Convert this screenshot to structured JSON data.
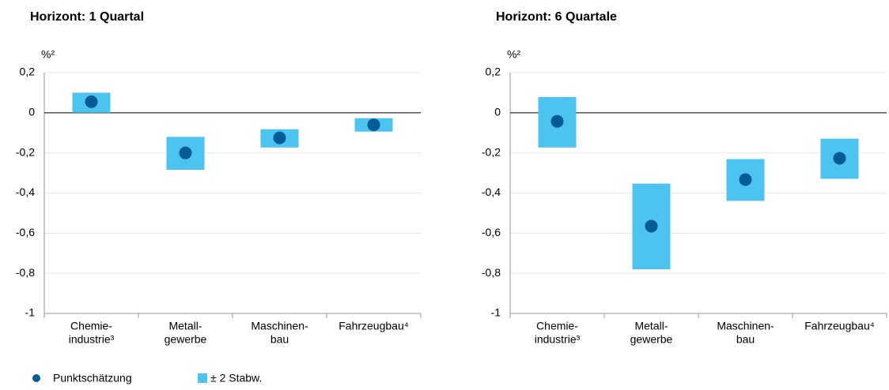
{
  "chart_data": [
    {
      "type": "dot-range",
      "title": "Horizont: 1 Quartal",
      "y_label": "%²",
      "categories": [
        [
          "Chemie-",
          "industrie³"
        ],
        [
          "Metall-",
          "gewerbe"
        ],
        [
          "Maschinen-",
          "bau"
        ],
        [
          "Fahrzeugbau⁴"
        ]
      ],
      "series": [
        {
          "name": "Punktschätzung",
          "color": "#005b96",
          "values": [
            0.055,
            -0.2,
            -0.125,
            -0.06
          ]
        },
        {
          "name": "± 2 Stabw.",
          "color": "#4dc3f0",
          "low": [
            0,
            -0.284,
            -0.173,
            -0.094
          ],
          "high": [
            0.1,
            -0.12,
            -0.082,
            -0.027
          ]
        }
      ],
      "ylim": [
        -1,
        0.2
      ],
      "yticks": [
        {
          "value": 0.2,
          "label": "0,2"
        },
        0,
        {
          "value": -0.2,
          "label": "-0,2"
        },
        {
          "value": -0.4,
          "label": "-0,4"
        },
        {
          "value": -0.6,
          "label": "-0,6"
        },
        {
          "value": -0.8,
          "label": "-0,8"
        },
        -1
      ],
      "grid": true
    },
    {
      "type": "dot-range",
      "title": "Horizont: 6 Quartale",
      "y_label": "%²",
      "categories": [
        [
          "Chemie-",
          "industrie³"
        ],
        [
          "Metall-",
          "gewerbe"
        ],
        [
          "Maschinen-",
          "bau"
        ],
        [
          "Fahrzeugbau⁴"
        ]
      ],
      "series": [
        {
          "color": "#005b96",
          "values": [
            -0.043,
            -0.565,
            -0.333,
            -0.227
          ]
        },
        {
          "color": "#4dc3f0",
          "low": [
            -0.173,
            -0.78,
            -0.439,
            -0.329
          ],
          "high": [
            0.078,
            -0.353,
            -0.231,
            -0.129
          ]
        }
      ],
      "ylim": [
        -1,
        0.2
      ],
      "yticks": [
        {
          "value": 0.2,
          "label": "0,2"
        },
        0,
        {
          "value": -0.2,
          "label": "-0,2"
        },
        {
          "value": -0.4,
          "label": "-0,4"
        },
        {
          "value": -0.6,
          "label": "-0,6"
        },
        {
          "value": -0.8,
          "label": "-0,8"
        },
        -1
      ],
      "grid": true
    }
  ]
}
